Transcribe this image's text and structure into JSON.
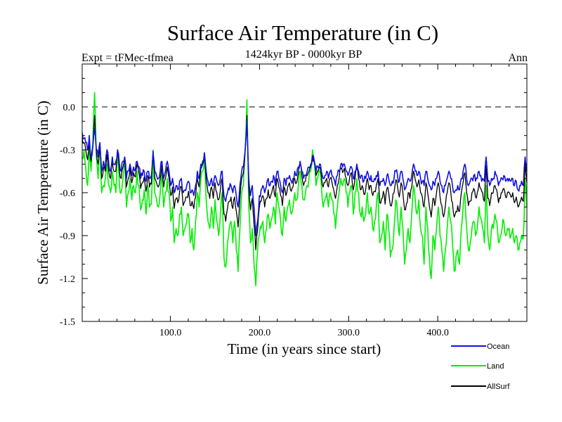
{
  "chart_data": {
    "type": "line",
    "title": "Surface Air Temperature (in C)",
    "subtitle": "1424kyr BP - 0000kyr BP",
    "left_label": "Expt = tFMec-tfmea",
    "right_label": "Ann",
    "xlabel": "Time (in years since start)",
    "ylabel": "Surface Air Temperature (in C)",
    "xlim": [
      1,
      500
    ],
    "ylim": [
      -1.5,
      0.3
    ],
    "x_ticks": [
      100,
      200,
      300,
      400
    ],
    "x_tick_labels": [
      "100.0",
      "200.0",
      "300.0",
      "400.0"
    ],
    "y_ticks": [
      -1.5,
      -1.2,
      -0.9,
      -0.6,
      -0.3,
      0.0
    ],
    "y_tick_labels": [
      "-1.5",
      "-1.2",
      "-0.9",
      "-0.6",
      "-0.3",
      "0.0"
    ],
    "reference_line": 0.0,
    "legend_position": "bottom-right",
    "series_anchor_step": 5,
    "series": [
      {
        "name": "Ocean",
        "color": "#1010e0",
        "values": [
          -0.18,
          -0.22,
          -0.25,
          -0.3,
          -0.2,
          -0.35,
          -0.28,
          -0.15,
          -0.3,
          -0.35,
          -0.25,
          -0.45,
          -0.38,
          -0.42,
          -0.3,
          -0.4,
          -0.45,
          -0.35,
          -0.4,
          -0.38,
          -0.3,
          -0.4,
          -0.45,
          -0.38,
          -0.35,
          -0.5,
          -0.45,
          -0.4,
          -0.48,
          -0.42,
          -0.44,
          -0.38,
          -0.42,
          -0.5,
          -0.48,
          -0.45,
          -0.52,
          -0.45,
          -0.5,
          -0.48,
          -0.32,
          -0.45,
          -0.48,
          -0.5,
          -0.45,
          -0.38,
          -0.5,
          -0.45,
          -0.38,
          -0.45,
          -0.55,
          -0.5,
          -0.6,
          -0.55,
          -0.58,
          -0.52,
          -0.5,
          -0.6,
          -0.58,
          -0.55,
          -0.52,
          -0.6,
          -0.58,
          -0.62,
          -0.55,
          -0.45,
          -0.5,
          -0.4,
          -0.38,
          -0.32,
          -0.45,
          -0.52,
          -0.55,
          -0.5,
          -0.55,
          -0.48,
          -0.52,
          -0.55,
          -0.5,
          -0.45,
          -0.62,
          -0.66,
          -0.6,
          -0.58,
          -0.55,
          -0.6,
          -0.55,
          -0.62,
          -0.7,
          -0.55,
          -0.45,
          -0.42,
          -0.3,
          -0.1,
          -0.5,
          -0.62,
          -0.55,
          -0.7,
          -0.9,
          -0.8,
          -0.62,
          -0.58,
          -0.55,
          -0.6,
          -0.55,
          -0.5,
          -0.55,
          -0.52,
          -0.48,
          -0.55,
          -0.45,
          -0.5,
          -0.55,
          -0.6,
          -0.5,
          -0.55,
          -0.5,
          -0.48,
          -0.52,
          -0.5,
          -0.45,
          -0.48,
          -0.42,
          -0.38,
          -0.45,
          -0.5,
          -0.48,
          -0.45,
          -0.42,
          -0.4,
          -0.35,
          -0.38,
          -0.45,
          -0.42,
          -0.4,
          -0.45,
          -0.5,
          -0.48,
          -0.45,
          -0.5,
          -0.45,
          -0.48,
          -0.5,
          -0.55,
          -0.48,
          -0.45,
          -0.4,
          -0.42,
          -0.4,
          -0.45,
          -0.48,
          -0.44,
          -0.42,
          -0.5,
          -0.45,
          -0.4,
          -0.45,
          -0.5,
          -0.48,
          -0.52,
          -0.5,
          -0.45,
          -0.5,
          -0.48,
          -0.52,
          -0.5,
          -0.48,
          -0.45,
          -0.55,
          -0.52,
          -0.5,
          -0.55,
          -0.48,
          -0.5,
          -0.55,
          -0.52,
          -0.5,
          -0.45,
          -0.48,
          -0.52,
          -0.45,
          -0.5,
          -0.58,
          -0.55,
          -0.5,
          -0.52,
          -0.48,
          -0.4,
          -0.45,
          -0.48,
          -0.45,
          -0.5,
          -0.52,
          -0.55,
          -0.45,
          -0.5,
          -0.55,
          -0.58,
          -0.52,
          -0.55,
          -0.5,
          -0.45,
          -0.52,
          -0.55,
          -0.6,
          -0.55,
          -0.5,
          -0.45,
          -0.5,
          -0.55,
          -0.6,
          -0.58,
          -0.55,
          -0.58,
          -0.5,
          -0.45,
          -0.4,
          -0.5,
          -0.55,
          -0.52,
          -0.5,
          -0.48,
          -0.52,
          -0.5,
          -0.45,
          -0.48,
          -0.5,
          -0.52,
          -0.35,
          -0.52,
          -0.55,
          -0.5,
          -0.5,
          -0.45,
          -0.48,
          -0.55,
          -0.52,
          -0.5,
          -0.48,
          -0.52,
          -0.5,
          -0.5,
          -0.52,
          -0.5,
          -0.55,
          -0.52,
          -0.58,
          -0.55,
          -0.52,
          -0.55,
          -0.35,
          -0.45
        ]
      },
      {
        "name": "Land",
        "color": "#00ee00",
        "values": [
          -0.35,
          -0.3,
          -0.42,
          -0.55,
          -0.3,
          -0.45,
          -0.25,
          0.1,
          -0.35,
          -0.5,
          -0.25,
          -0.6,
          -0.55,
          -0.5,
          -0.4,
          -0.55,
          -0.6,
          -0.45,
          -0.55,
          -0.6,
          -0.3,
          -0.55,
          -0.6,
          -0.5,
          -0.35,
          -0.7,
          -0.6,
          -0.5,
          -0.65,
          -0.55,
          -0.6,
          -0.45,
          -0.55,
          -0.72,
          -0.65,
          -0.58,
          -0.75,
          -0.55,
          -0.7,
          -0.68,
          -0.3,
          -0.6,
          -0.65,
          -0.7,
          -0.6,
          -0.45,
          -0.7,
          -0.6,
          -0.5,
          -0.6,
          -0.8,
          -0.7,
          -0.95,
          -0.85,
          -0.9,
          -0.75,
          -0.7,
          -0.9,
          -0.85,
          -0.8,
          -0.75,
          -0.95,
          -0.85,
          -1.0,
          -0.8,
          -0.6,
          -0.7,
          -0.5,
          -0.45,
          -0.35,
          -0.65,
          -0.8,
          -0.85,
          -0.7,
          -0.85,
          -0.65,
          -0.8,
          -0.9,
          -0.75,
          -0.6,
          -1.05,
          -1.12,
          -0.95,
          -0.85,
          -0.8,
          -0.95,
          -0.8,
          -1.0,
          -1.15,
          -0.85,
          -0.6,
          -0.55,
          -0.3,
          0.05,
          -0.7,
          -0.95,
          -0.85,
          -1.1,
          -1.25,
          -1.0,
          -0.9,
          -0.85,
          -0.8,
          -0.95,
          -0.85,
          -0.75,
          -0.85,
          -0.78,
          -0.7,
          -0.82,
          -0.6,
          -0.7,
          -0.8,
          -0.9,
          -0.7,
          -0.8,
          -0.7,
          -0.65,
          -0.75,
          -0.7,
          -0.6,
          -0.65,
          -0.55,
          -0.45,
          -0.55,
          -0.65,
          -0.6,
          -0.55,
          -0.5,
          -0.45,
          -0.3,
          -0.4,
          -0.55,
          -0.5,
          -0.45,
          -0.55,
          -0.7,
          -0.65,
          -0.6,
          -0.7,
          -0.6,
          -0.65,
          -0.75,
          -0.85,
          -0.7,
          -0.6,
          -0.5,
          -0.55,
          -0.5,
          -0.6,
          -0.7,
          -0.6,
          -0.55,
          -0.75,
          -0.6,
          -0.5,
          -0.6,
          -0.75,
          -0.7,
          -0.8,
          -0.75,
          -0.6,
          -0.75,
          -0.7,
          -0.85,
          -0.8,
          -0.7,
          -0.6,
          -0.95,
          -0.9,
          -0.8,
          -1.0,
          -0.75,
          -0.85,
          -1.05,
          -1.0,
          -0.85,
          -0.65,
          -0.75,
          -0.9,
          -0.7,
          -0.85,
          -1.1,
          -1.0,
          -0.85,
          -0.95,
          -0.75,
          -0.55,
          -0.65,
          -0.75,
          -0.65,
          -0.85,
          -0.9,
          -1.1,
          -0.7,
          -0.85,
          -1.05,
          -1.2,
          -0.9,
          -1.0,
          -0.85,
          -0.7,
          -0.9,
          -1.0,
          -1.15,
          -1.0,
          -0.85,
          -0.7,
          -0.8,
          -0.95,
          -1.15,
          -1.05,
          -1.0,
          -1.1,
          -0.85,
          -0.7,
          -0.6,
          -0.85,
          -1.0,
          -0.95,
          -0.85,
          -0.8,
          -0.9,
          -0.85,
          -0.7,
          -0.78,
          -0.85,
          -0.95,
          -0.55,
          -0.9,
          -1.0,
          -0.85,
          -0.85,
          -0.75,
          -0.8,
          -0.95,
          -0.9,
          -0.85,
          -0.8,
          -0.9,
          -0.85,
          -0.85,
          -0.9,
          -0.85,
          -0.95,
          -0.9,
          -1.0,
          -0.95,
          -0.9,
          -0.92,
          -0.5,
          -0.7
        ]
      },
      {
        "name": "AllSurf",
        "color": "#000000",
        "values": [
          -0.22,
          -0.25,
          -0.3,
          -0.37,
          -0.24,
          -0.38,
          -0.28,
          -0.06,
          -0.32,
          -0.4,
          -0.25,
          -0.5,
          -0.43,
          -0.45,
          -0.33,
          -0.45,
          -0.5,
          -0.38,
          -0.45,
          -0.45,
          -0.3,
          -0.45,
          -0.5,
          -0.42,
          -0.35,
          -0.56,
          -0.5,
          -0.43,
          -0.53,
          -0.46,
          -0.49,
          -0.4,
          -0.46,
          -0.57,
          -0.53,
          -0.49,
          -0.59,
          -0.48,
          -0.56,
          -0.54,
          -0.31,
          -0.5,
          -0.53,
          -0.56,
          -0.5,
          -0.4,
          -0.56,
          -0.5,
          -0.42,
          -0.5,
          -0.62,
          -0.56,
          -0.71,
          -0.64,
          -0.67,
          -0.59,
          -0.56,
          -0.69,
          -0.66,
          -0.63,
          -0.59,
          -0.69,
          -0.66,
          -0.71,
          -0.63,
          -0.5,
          -0.56,
          -0.43,
          -0.4,
          -0.33,
          -0.51,
          -0.6,
          -0.64,
          -0.56,
          -0.64,
          -0.53,
          -0.6,
          -0.65,
          -0.58,
          -0.5,
          -0.75,
          -0.8,
          -0.71,
          -0.66,
          -0.63,
          -0.71,
          -0.63,
          -0.73,
          -0.84,
          -0.64,
          -0.5,
          -0.46,
          -0.3,
          -0.06,
          -0.56,
          -0.72,
          -0.64,
          -0.82,
          -1.0,
          -0.86,
          -0.7,
          -0.66,
          -0.62,
          -0.7,
          -0.64,
          -0.58,
          -0.64,
          -0.6,
          -0.55,
          -0.63,
          -0.5,
          -0.56,
          -0.62,
          -0.69,
          -0.56,
          -0.62,
          -0.56,
          -0.53,
          -0.59,
          -0.56,
          -0.5,
          -0.53,
          -0.46,
          -0.4,
          -0.48,
          -0.55,
          -0.52,
          -0.48,
          -0.45,
          -0.42,
          -0.34,
          -0.38,
          -0.48,
          -0.45,
          -0.42,
          -0.48,
          -0.56,
          -0.53,
          -0.5,
          -0.56,
          -0.5,
          -0.53,
          -0.58,
          -0.64,
          -0.55,
          -0.5,
          -0.43,
          -0.46,
          -0.43,
          -0.5,
          -0.55,
          -0.49,
          -0.46,
          -0.58,
          -0.5,
          -0.43,
          -0.5,
          -0.58,
          -0.55,
          -0.61,
          -0.58,
          -0.5,
          -0.58,
          -0.55,
          -0.62,
          -0.59,
          -0.55,
          -0.5,
          -0.67,
          -0.64,
          -0.59,
          -0.68,
          -0.57,
          -0.6,
          -0.69,
          -0.66,
          -0.6,
          -0.51,
          -0.56,
          -0.63,
          -0.53,
          -0.6,
          -0.72,
          -0.68,
          -0.6,
          -0.64,
          -0.56,
          -0.45,
          -0.51,
          -0.56,
          -0.51,
          -0.6,
          -0.63,
          -0.7,
          -0.53,
          -0.6,
          -0.7,
          -0.77,
          -0.64,
          -0.69,
          -0.6,
          -0.53,
          -0.63,
          -0.69,
          -0.77,
          -0.69,
          -0.6,
          -0.53,
          -0.59,
          -0.67,
          -0.77,
          -0.73,
          -0.69,
          -0.73,
          -0.6,
          -0.53,
          -0.46,
          -0.6,
          -0.69,
          -0.66,
          -0.6,
          -0.57,
          -0.63,
          -0.6,
          -0.53,
          -0.57,
          -0.6,
          -0.66,
          -0.41,
          -0.64,
          -0.69,
          -0.6,
          -0.6,
          -0.55,
          -0.58,
          -0.67,
          -0.64,
          -0.6,
          -0.57,
          -0.63,
          -0.6,
          -0.6,
          -0.63,
          -0.6,
          -0.67,
          -0.63,
          -0.7,
          -0.67,
          -0.63,
          -0.66,
          -0.4,
          -0.53
        ]
      }
    ]
  }
}
